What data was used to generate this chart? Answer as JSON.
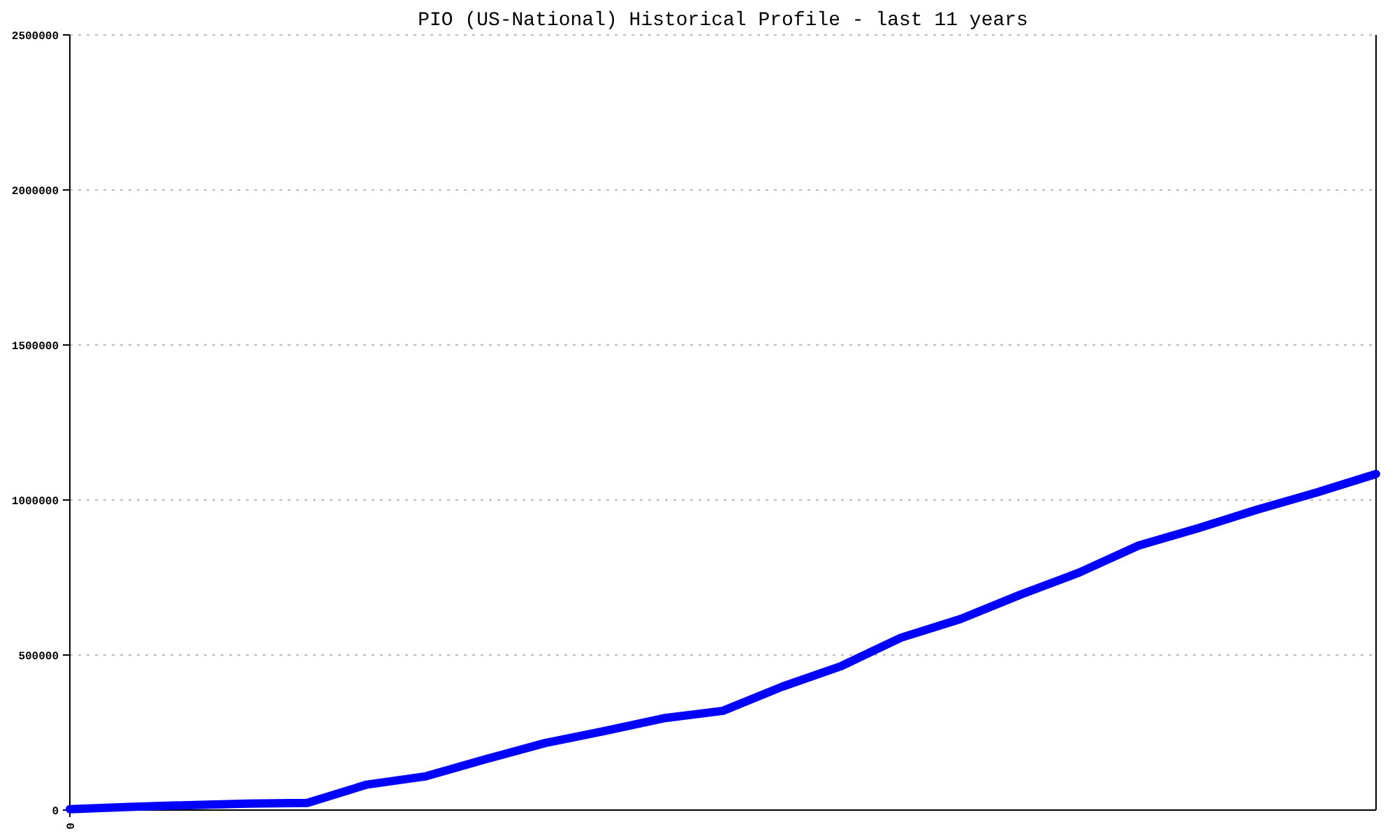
{
  "chart_data": {
    "type": "line",
    "title": "PIO (US-National) Historical Profile - last 11 years",
    "categories": [
      "0",
      null,
      null,
      null,
      null,
      null,
      null,
      null,
      null,
      null,
      null,
      null,
      null,
      null,
      null,
      null,
      null,
      null,
      null,
      null,
      null,
      null,
      null
    ],
    "series": [
      {
        "color": "#0000ff",
        "values": [
          3000,
          10000,
          16000,
          21000,
          23000,
          82000,
          109000,
          164000,
          216000,
          255000,
          296000,
          320000,
          398000,
          465000,
          556000,
          616000,
          694000,
          766000,
          853000,
          909000,
          969000,
          1024000,
          1084000
        ]
      }
    ],
    "ylim": [
      0,
      2500000
    ],
    "yticks": [
      0,
      500000,
      1000000,
      1500000,
      2000000,
      2500000
    ],
    "grid": "y"
  }
}
